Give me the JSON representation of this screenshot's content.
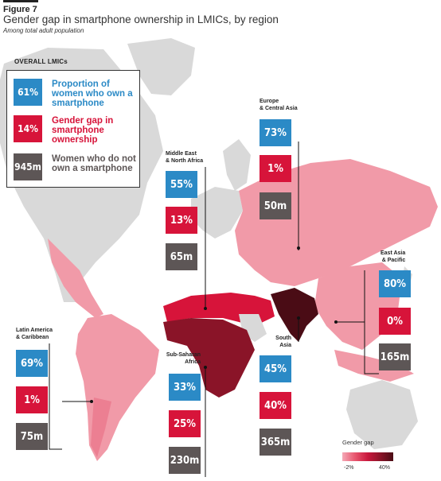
{
  "header": {
    "figure_label": "Figure 7",
    "title": "Gender gap in smartphone ownership in LMICs, by region",
    "subtitle": "Among total adult population"
  },
  "overall": {
    "heading": "OVERALL LMICs",
    "items": [
      {
        "value": "61%",
        "label": "Proportion of women who own a smartphone",
        "color": "#2b8ac6"
      },
      {
        "value": "14%",
        "label": "Gender gap in smartphone ownership",
        "color": "#d7143a"
      },
      {
        "value": "945m",
        "label": "Women who do not own a smartphone",
        "color": "#5d5656"
      }
    ]
  },
  "regions": {
    "europe_central_asia": {
      "name_line1": "Europe",
      "name_line2": "& Central Asia",
      "ownership": "73%",
      "gap": "1%",
      "not_own": "50m"
    },
    "middle_east_north_africa": {
      "name_line1": "Middle East",
      "name_line2": "& North Africa",
      "ownership": "55%",
      "gap": "13%",
      "not_own": "65m"
    },
    "east_asia_pacific": {
      "name_line1": "East Asia",
      "name_line2": "& Pacific",
      "ownership": "80%",
      "gap": "0%",
      "not_own": "165m"
    },
    "latin_america_caribbean": {
      "name_line1": "Latin America",
      "name_line2": "& Caribbean",
      "ownership": "69%",
      "gap": "1%",
      "not_own": "75m"
    },
    "sub_saharan_africa": {
      "name_line1": "Sub-Saharan",
      "name_line2": "Africa",
      "ownership": "33%",
      "gap": "25%",
      "not_own": "230m"
    },
    "south_asia": {
      "name_line1": "South",
      "name_line2": "Asia",
      "ownership": "45%",
      "gap": "40%",
      "not_own": "365m"
    }
  },
  "scale": {
    "title": "Gender gap",
    "min_label": "-2%",
    "max_label": "40%",
    "colors": [
      "#f4a9b6",
      "#e8566e",
      "#c9183d",
      "#8a1428",
      "#4a0c15"
    ]
  }
}
